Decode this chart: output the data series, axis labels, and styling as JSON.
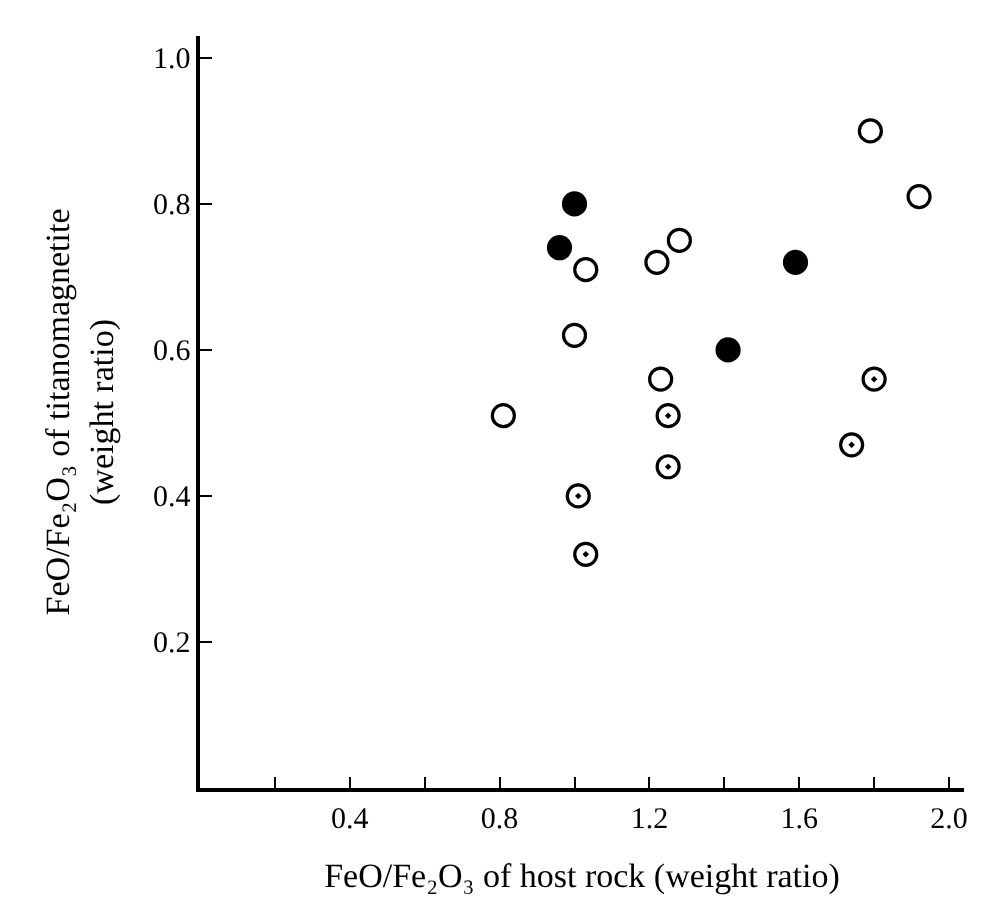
{
  "chart_data": {
    "type": "scatter",
    "xlabel": "FeO/Fe₂O₃ of host rock (weight ratio)",
    "ylabel": "FeO/Fe₂O₃ of titanomagnetite\n(weight ratio)",
    "xlim": [
      0,
      2.04
    ],
    "ylim": [
      0,
      1.03
    ],
    "xticks": [
      {
        "value": 0.2,
        "label": null
      },
      0.4,
      {
        "value": 0.6,
        "label": null
      },
      0.8,
      {
        "value": 1.0,
        "label": null
      },
      1.2,
      {
        "value": 1.4,
        "label": null
      },
      1.6,
      {
        "value": 1.8,
        "label": null
      },
      {
        "value": 2,
        "label": "2.0"
      }
    ],
    "yticks": [
      0.2,
      0.4,
      0.6,
      0.8,
      {
        "value": 1,
        "label": "1.0"
      }
    ],
    "series": [
      {
        "color": "#000000",
        "marker": "circle",
        "x": [
          1.0,
          0.96,
          1.59,
          1.41
        ],
        "values": [
          0.8,
          0.74,
          0.72,
          0.6
        ]
      },
      {
        "color": "#000000",
        "marker": "circle-open",
        "x": [
          1.79,
          1.92,
          1.28,
          1.22,
          1.03,
          1.0,
          1.23,
          0.81
        ],
        "values": [
          0.9,
          0.81,
          0.75,
          0.72,
          0.71,
          0.62,
          0.56,
          0.51
        ]
      },
      {
        "color": "#000000",
        "marker": "circle-open-dot",
        "x": [
          1.8,
          1.74,
          1.25,
          1.25,
          1.01,
          1.03
        ],
        "values": [
          0.56,
          0.47,
          0.51,
          0.44,
          0.4,
          0.32
        ]
      }
    ]
  }
}
